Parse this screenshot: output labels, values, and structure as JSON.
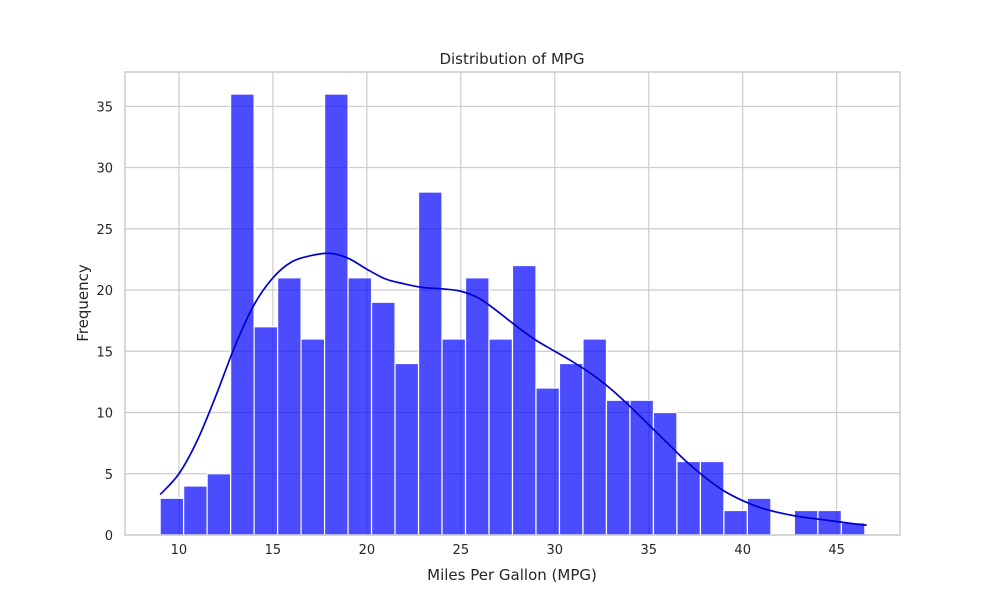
{
  "chart_data": {
    "type": "bar",
    "title": "Distribution of MPG",
    "xlabel": "Miles Per Gallon (MPG)",
    "ylabel": "Frequency",
    "xlim": [
      7.13,
      48.37
    ],
    "ylim": [
      0,
      37.8
    ],
    "xticks": [
      10,
      15,
      20,
      25,
      30,
      35,
      40,
      45
    ],
    "yticks": [
      0,
      5,
      10,
      15,
      20,
      25,
      30,
      35
    ],
    "grid": true,
    "bar_color": "#0000ff",
    "bar_opacity": 0.7,
    "kde_color": "#0000cc",
    "bins": [
      {
        "x0": 9.0,
        "x1": 10.25,
        "count": 3
      },
      {
        "x0": 10.25,
        "x1": 11.5,
        "count": 4
      },
      {
        "x0": 11.5,
        "x1": 12.75,
        "count": 5
      },
      {
        "x0": 12.75,
        "x1": 14.0,
        "count": 36
      },
      {
        "x0": 14.0,
        "x1": 15.25,
        "count": 17
      },
      {
        "x0": 15.25,
        "x1": 16.5,
        "count": 21
      },
      {
        "x0": 16.5,
        "x1": 17.75,
        "count": 16
      },
      {
        "x0": 17.75,
        "x1": 19.0,
        "count": 36
      },
      {
        "x0": 19.0,
        "x1": 20.25,
        "count": 21
      },
      {
        "x0": 20.25,
        "x1": 21.5,
        "count": 19
      },
      {
        "x0": 21.5,
        "x1": 22.75,
        "count": 14
      },
      {
        "x0": 22.75,
        "x1": 24.0,
        "count": 28
      },
      {
        "x0": 24.0,
        "x1": 25.25,
        "count": 16
      },
      {
        "x0": 25.25,
        "x1": 26.5,
        "count": 21
      },
      {
        "x0": 26.5,
        "x1": 27.75,
        "count": 16
      },
      {
        "x0": 27.75,
        "x1": 29.0,
        "count": 22
      },
      {
        "x0": 29.0,
        "x1": 30.25,
        "count": 12
      },
      {
        "x0": 30.25,
        "x1": 31.5,
        "count": 14
      },
      {
        "x0": 31.5,
        "x1": 32.75,
        "count": 16
      },
      {
        "x0": 32.75,
        "x1": 34.0,
        "count": 11
      },
      {
        "x0": 34.0,
        "x1": 35.25,
        "count": 11
      },
      {
        "x0": 35.25,
        "x1": 36.5,
        "count": 10
      },
      {
        "x0": 36.5,
        "x1": 37.75,
        "count": 6
      },
      {
        "x0": 37.75,
        "x1": 39.0,
        "count": 6
      },
      {
        "x0": 39.0,
        "x1": 40.25,
        "count": 2
      },
      {
        "x0": 40.25,
        "x1": 41.5,
        "count": 3
      },
      {
        "x0": 41.5,
        "x1": 42.75,
        "count": 0
      },
      {
        "x0": 42.75,
        "x1": 44.0,
        "count": 2
      },
      {
        "x0": 44.0,
        "x1": 45.25,
        "count": 2
      },
      {
        "x0": 45.25,
        "x1": 46.5,
        "count": 1
      }
    ],
    "kde": {
      "x": [
        9.0,
        10.0,
        11.0,
        12.0,
        13.0,
        14.0,
        15.0,
        16.0,
        17.0,
        18.0,
        19.0,
        20.0,
        21.0,
        22.0,
        23.0,
        24.0,
        25.0,
        26.0,
        27.0,
        28.0,
        29.0,
        30.0,
        31.0,
        32.0,
        33.0,
        34.0,
        35.0,
        36.0,
        37.0,
        38.0,
        39.0,
        40.0,
        41.0,
        42.0,
        43.0,
        44.0,
        45.0,
        46.0,
        46.6
      ],
      "y": [
        3.3,
        5.0,
        7.8,
        11.5,
        15.5,
        18.8,
        21.0,
        22.3,
        22.8,
        23.0,
        22.6,
        21.7,
        20.9,
        20.5,
        20.2,
        20.1,
        19.9,
        19.3,
        18.2,
        17.0,
        15.9,
        15.0,
        14.1,
        13.1,
        11.9,
        10.5,
        9.0,
        7.5,
        6.0,
        4.7,
        3.6,
        2.8,
        2.2,
        1.8,
        1.5,
        1.3,
        1.1,
        0.9,
        0.8
      ]
    }
  }
}
